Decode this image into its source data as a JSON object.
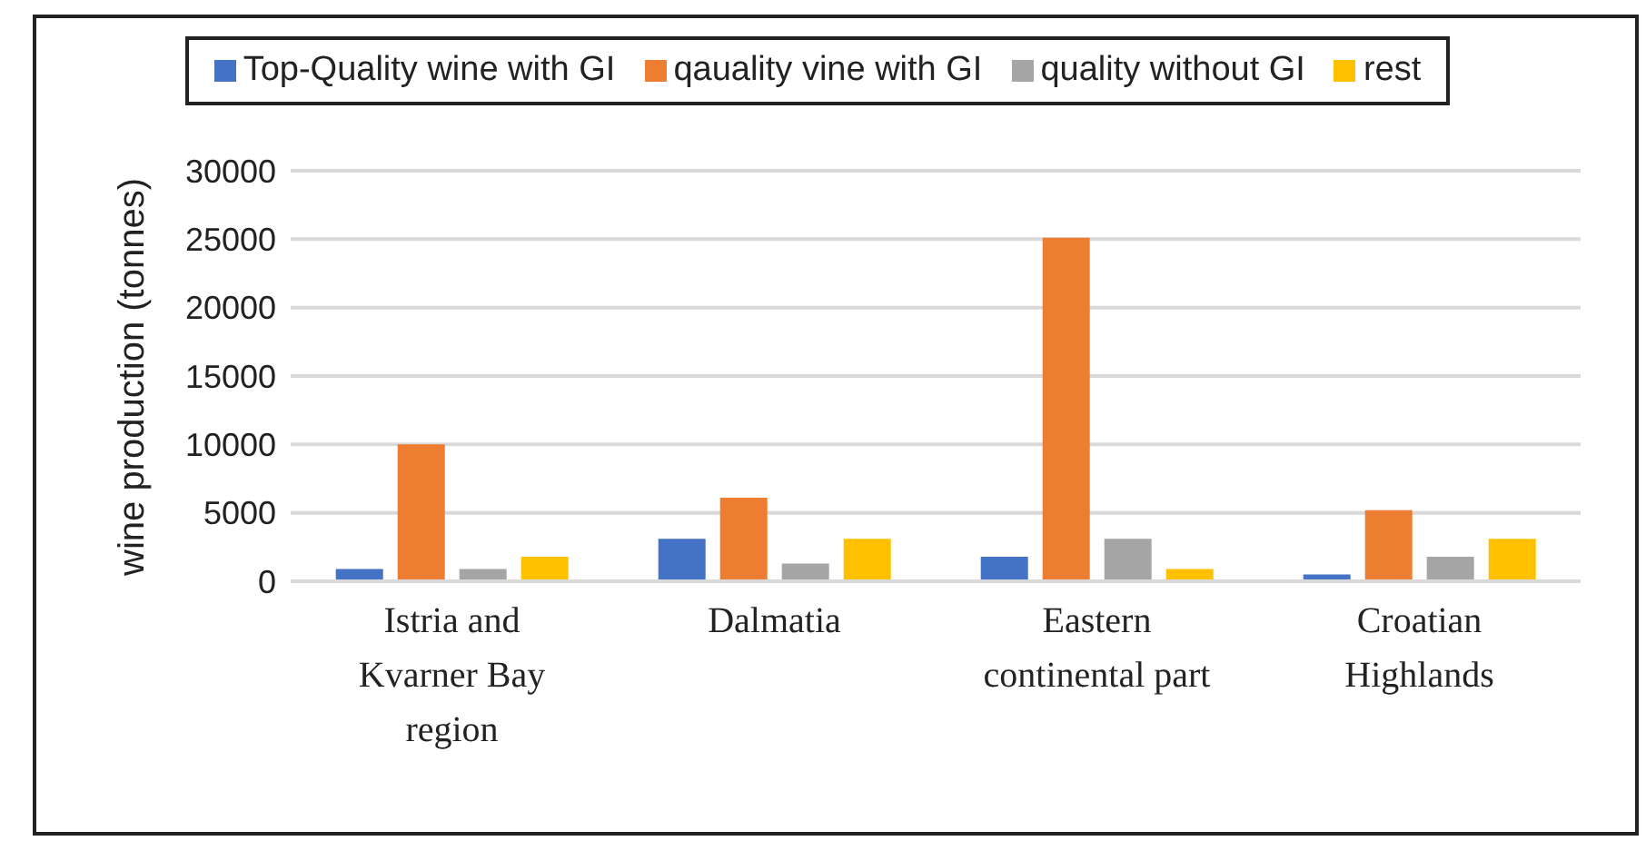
{
  "chart_data": {
    "type": "bar",
    "ylabel": "wine production (tonnes)",
    "categories": [
      "Istria and Kvarner Bay region",
      "Dalmatia",
      "Eastern continental part",
      "Croatian Highlands"
    ],
    "series": [
      {
        "name": "Top-Quality wine with GI",
        "color": "#4472c4",
        "values": [
          900,
          3100,
          1800,
          500
        ]
      },
      {
        "name": "qauality vine with GI",
        "color": "#ed7d31",
        "values": [
          10000,
          6100,
          25100,
          5200
        ]
      },
      {
        "name": "quality without GI",
        "color": "#a5a5a5",
        "values": [
          900,
          1300,
          3100,
          1800
        ]
      },
      {
        "name": "rest",
        "color": "#ffc000",
        "values": [
          1800,
          3100,
          900,
          3100
        ]
      }
    ],
    "ylim": [
      0,
      30000
    ],
    "yticks": [
      0,
      5000,
      10000,
      15000,
      20000,
      25000,
      30000
    ],
    "grid": "y",
    "legend": "top"
  }
}
